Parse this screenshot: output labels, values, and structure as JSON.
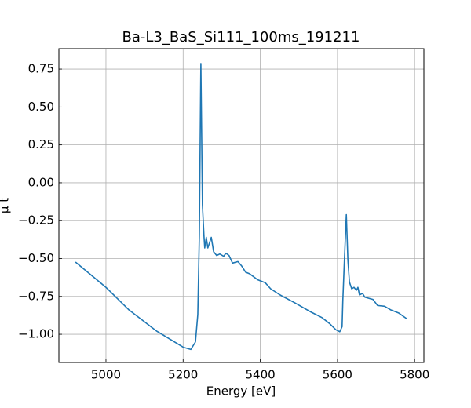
{
  "chart_data": {
    "type": "line",
    "title": "Ba-L3_BaS_Si111_100ms_191211",
    "x_label": "Energy [eV]",
    "y_label": "μ t",
    "series": [
      {
        "color": "#1f77b4",
        "x": [
          4921,
          5000,
          5060,
          5132,
          5200,
          5220,
          5232,
          5238,
          5242,
          5246,
          5250,
          5254,
          5256,
          5260,
          5264,
          5273,
          5279,
          5287,
          5295,
          5305,
          5311,
          5319,
          5328,
          5342,
          5352,
          5362,
          5372,
          5393,
          5413,
          5427,
          5448,
          5462,
          5488,
          5529,
          5560,
          5580,
          5596,
          5606,
          5612,
          5614,
          5618,
          5623,
          5627,
          5631,
          5637,
          5643,
          5649,
          5653,
          5657,
          5665,
          5671,
          5692,
          5704,
          5722,
          5739,
          5759,
          5781
        ],
        "values": [
          -0.523,
          -0.69,
          -0.84,
          -0.98,
          -1.085,
          -1.1,
          -1.05,
          -0.87,
          -0.35,
          0.787,
          -0.145,
          -0.35,
          -0.43,
          -0.36,
          -0.43,
          -0.36,
          -0.455,
          -0.48,
          -0.47,
          -0.485,
          -0.465,
          -0.48,
          -0.53,
          -0.52,
          -0.55,
          -0.59,
          -0.6,
          -0.64,
          -0.66,
          -0.7,
          -0.735,
          -0.755,
          -0.79,
          -0.85,
          -0.89,
          -0.93,
          -0.97,
          -0.983,
          -0.95,
          -0.77,
          -0.51,
          -0.21,
          -0.51,
          -0.655,
          -0.7,
          -0.69,
          -0.71,
          -0.69,
          -0.74,
          -0.73,
          -0.755,
          -0.77,
          -0.81,
          -0.815,
          -0.84,
          -0.86,
          -0.9
        ]
      }
    ],
    "xlim": [
      4878,
      5824
    ],
    "ylim": [
      -1.186,
      0.885
    ],
    "xticks": [
      5000,
      5200,
      5400,
      5600,
      5800
    ],
    "yticks": [
      {
        "value": 0.75,
        "label": "0.75"
      },
      {
        "value": 0.5,
        "label": "0.50"
      },
      {
        "value": 0.25,
        "label": "0.25"
      },
      {
        "value": 0,
        "label": "0.00"
      },
      {
        "value": -0.25,
        "label": "−0.25"
      },
      {
        "value": -0.5,
        "label": "−0.50"
      },
      {
        "value": -0.75,
        "label": "−0.75"
      },
      {
        "value": -1,
        "label": "−1.00"
      }
    ],
    "grid": true
  }
}
